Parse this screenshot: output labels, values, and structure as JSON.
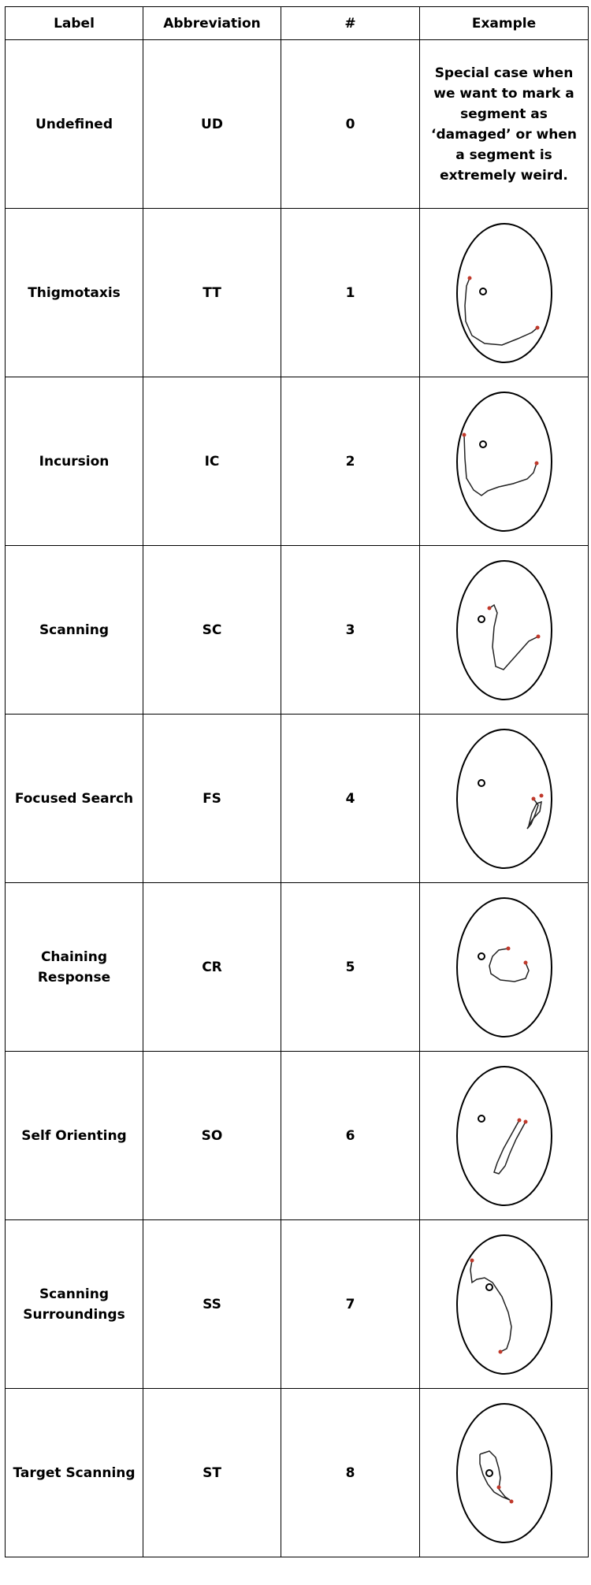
{
  "headers": {
    "label": "Label",
    "abbreviation": "Abbreviation",
    "number": "#",
    "example": "Example"
  },
  "rows": [
    {
      "label": "Undefined",
      "abbr": "UD",
      "num": "0",
      "example_text": "Special case when we want to mark a segment as ‘damaged’ or when a segment is extremely weird."
    },
    {
      "label": "Thigmotaxis",
      "abbr": "TT",
      "num": "1"
    },
    {
      "label": "Incursion",
      "abbr": "IC",
      "num": "2"
    },
    {
      "label": "Scanning",
      "abbr": "SC",
      "num": "3"
    },
    {
      "label": "Focused Search",
      "abbr": "FS",
      "num": "4"
    },
    {
      "label": "Chaining Response",
      "abbr": "CR",
      "num": "5"
    },
    {
      "label": "Self Orienting",
      "abbr": "SO",
      "num": "6"
    },
    {
      "label": "Scanning Surroundings",
      "abbr": "SS",
      "num": "7"
    },
    {
      "label": "Target Scanning",
      "abbr": "ST",
      "num": "8"
    }
  ],
  "colors": {
    "border": "#000000",
    "path": "#222222",
    "endpoint": "#c0392b"
  }
}
